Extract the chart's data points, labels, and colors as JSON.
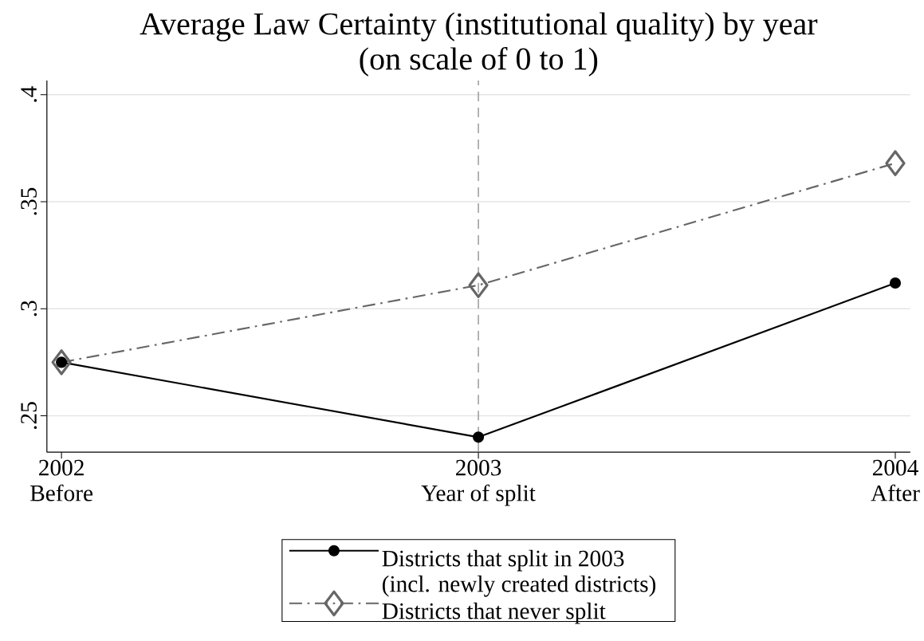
{
  "chart_data": {
    "type": "line",
    "title": "Average Law Certainty (institutional quality) by year",
    "subtitle": "(on scale of 0 to 1)",
    "x": [
      2002,
      2003,
      2004
    ],
    "xlim": [
      2001.965,
      2004.036
    ],
    "xticks": [
      {
        "value": 2002,
        "label": "2002 Before"
      },
      {
        "value": 2003,
        "label": "2003 Year of split"
      },
      {
        "value": 2004,
        "label": "2004 After"
      }
    ],
    "ylim": [
      0.233,
      0.4066
    ],
    "yticks": [
      {
        "value": 0.25,
        "label": ".25"
      },
      {
        "value": 0.3,
        "label": ".3"
      },
      {
        "value": 0.35,
        "label": ".35"
      },
      {
        "value": 0.4,
        "label": ".4"
      }
    ],
    "grid": "y",
    "legend": "bottom",
    "series": [
      {
        "name": "Districts that split in 2003 (incl. newly created districts)",
        "color": "#000000",
        "values": [
          0.275,
          0.24,
          0.312
        ],
        "marker": "circle",
        "line_style": "solid"
      },
      {
        "name": "Districts that never split",
        "color": "#666666",
        "values": [
          0.275,
          0.311,
          0.368
        ],
        "marker": "diamond",
        "line_style": "dashed"
      }
    ],
    "ref_lines": [
      {
        "axis": "x",
        "value": 2003,
        "color": "#8c8c8c",
        "line_style": "dashed"
      }
    ]
  }
}
